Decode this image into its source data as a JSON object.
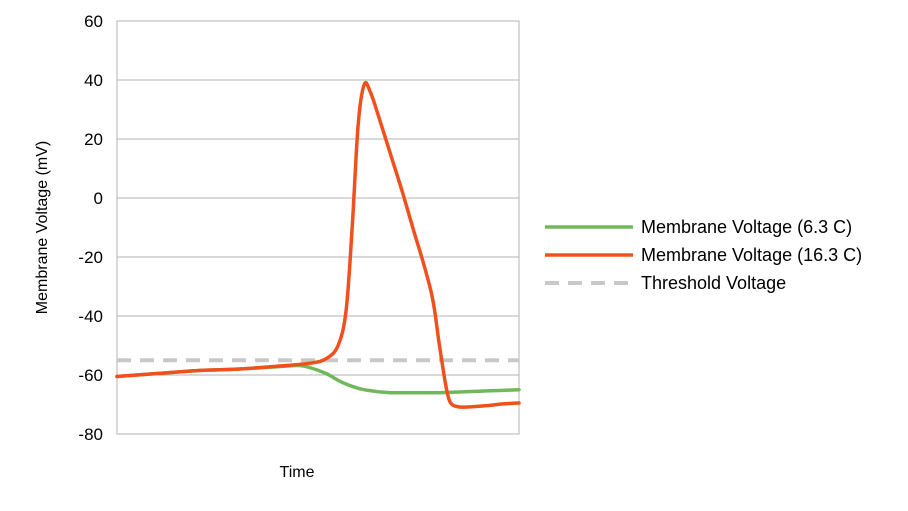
{
  "chart_data": {
    "type": "line",
    "title": "",
    "xlabel": "Time",
    "ylabel": "Membrane Voltage (mV)",
    "ylim": [
      -80,
      60
    ],
    "yticks": [
      60,
      40,
      20,
      0,
      -20,
      -40,
      -60,
      -80
    ],
    "xlim": [
      0,
      100
    ],
    "grid": true,
    "legend_position": "right",
    "series": [
      {
        "name": "Membrane Voltage (6.3 C)",
        "color": "#70b85a",
        "style": "solid",
        "x": [
          0,
          10,
          20,
          30,
          40,
          45,
          48,
          52,
          56,
          60,
          64,
          68,
          72,
          76,
          80,
          84,
          88,
          92,
          96,
          100
        ],
        "y": [
          -60.5,
          -59.5,
          -58.5,
          -58,
          -57.2,
          -56.8,
          -57.5,
          -59.5,
          -62.5,
          -64.5,
          -65.5,
          -66,
          -66,
          -66,
          -66,
          -65.8,
          -65.6,
          -65.4,
          -65.2,
          -65
        ]
      },
      {
        "name": "Membrane Voltage (16.3 C)",
        "color": "#f0501e",
        "style": "solid",
        "x": [
          0,
          10,
          20,
          30,
          40,
          48,
          52,
          55,
          57,
          58.5,
          60,
          61.5,
          63,
          65,
          68,
          71,
          74,
          76,
          78,
          79,
          80,
          81,
          82,
          83,
          85,
          88,
          92,
          96,
          100
        ],
        "y": [
          -60.5,
          -59.5,
          -58.5,
          -58,
          -57,
          -56,
          -54.5,
          -50,
          -38,
          -10,
          25,
          38.5,
          36,
          28,
          15,
          2,
          -12,
          -21,
          -31,
          -38,
          -48,
          -57,
          -65,
          -69.5,
          -70.8,
          -70.8,
          -70.4,
          -69.8,
          -69.5
        ]
      },
      {
        "name": "Threshold Voltage",
        "color": "#c8c8c8",
        "style": "dashed",
        "x": [
          0,
          100
        ],
        "y": [
          -55,
          -55
        ]
      }
    ]
  }
}
